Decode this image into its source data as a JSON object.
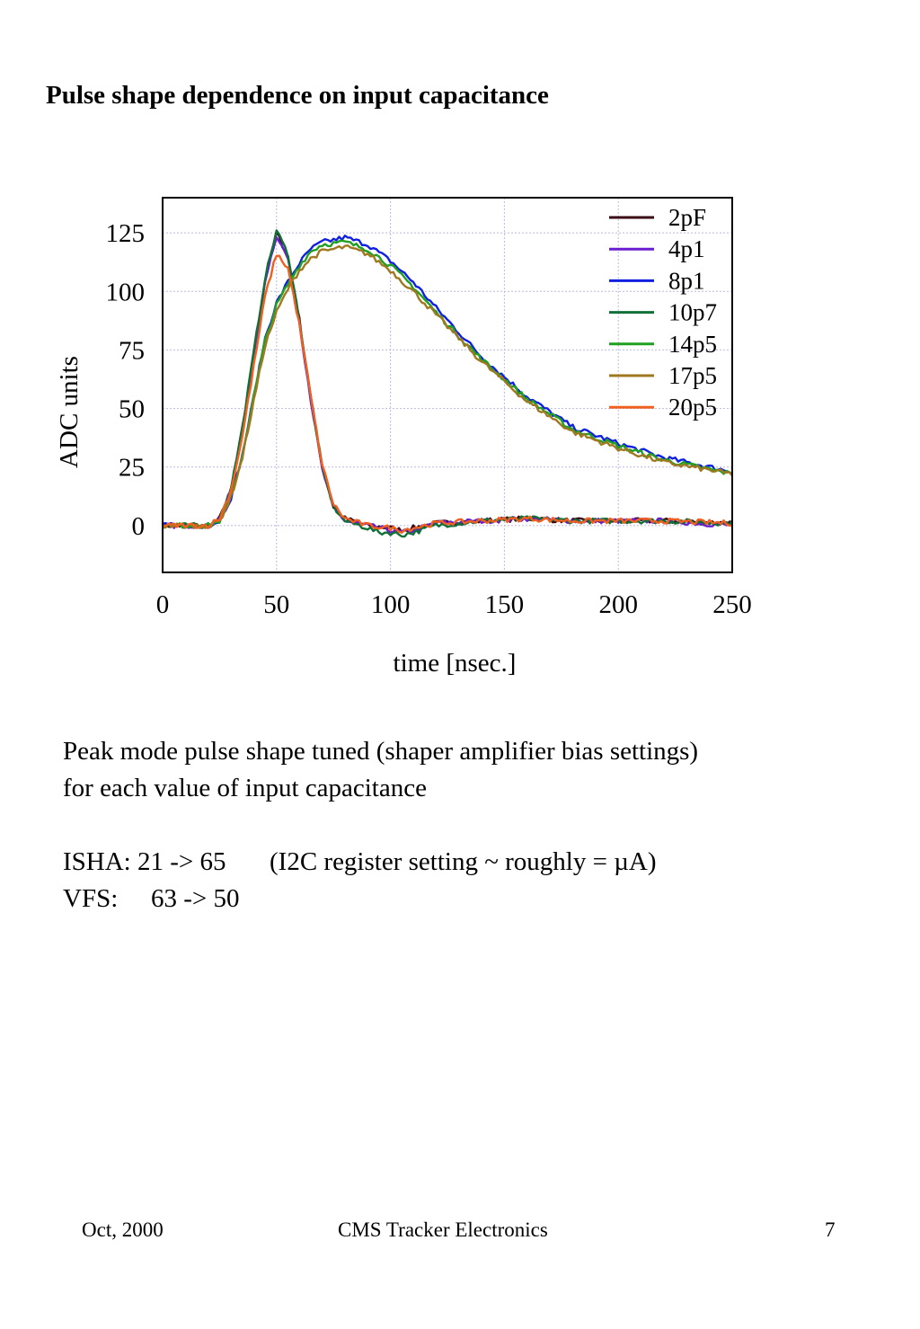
{
  "page": {
    "title": "Pulse shape dependence on input capacitance",
    "description": {
      "line1": "Peak mode pulse shape tuned (shaper amplifier bias settings)",
      "line2": "for each value of input capacitance",
      "isha_label": "ISHA: 21 -> 65",
      "isha_note": "(I2C register setting ~ roughly = µA)",
      "vfs_label": "VFS:",
      "vfs_value": "63 -> 50"
    },
    "footer": {
      "date": "Oct, 2000",
      "center": "CMS Tracker Electronics",
      "page_number": "7"
    }
  },
  "chart_data": {
    "type": "line",
    "title": "",
    "xlabel": "time [nsec.]",
    "ylabel": "ADC units",
    "xlim": [
      0,
      250
    ],
    "ylim": [
      -20,
      140
    ],
    "xticks": [
      0,
      50,
      100,
      150,
      200,
      250
    ],
    "yticks": [
      0,
      25,
      50,
      75,
      100,
      125
    ],
    "grid": true,
    "legend_position": "top-right",
    "series": [
      {
        "name": "2pF",
        "color": "#3a0a14",
        "x": [
          0,
          20,
          25,
          30,
          35,
          40,
          45,
          50,
          55,
          60,
          65,
          70,
          75,
          80,
          90,
          100,
          105,
          110,
          120,
          140,
          160,
          180,
          200,
          220,
          250
        ],
        "y": [
          0,
          0,
          3,
          15,
          40,
          72,
          105,
          125,
          115,
          88,
          55,
          25,
          8,
          3,
          0,
          -1,
          -2,
          -1,
          1,
          2,
          3,
          2,
          2,
          2,
          1
        ]
      },
      {
        "name": "4p1",
        "color": "#6a1ed0",
        "x": [
          0,
          20,
          25,
          30,
          35,
          40,
          45,
          50,
          55,
          60,
          65,
          70,
          75,
          80,
          90,
          100,
          105,
          110,
          120,
          140,
          160,
          180,
          200,
          220,
          250
        ],
        "y": [
          0,
          0,
          3,
          15,
          40,
          72,
          105,
          124,
          114,
          87,
          54,
          24,
          8,
          2,
          0,
          -2,
          -3,
          -2,
          1,
          2,
          3,
          2,
          2,
          2,
          0
        ]
      },
      {
        "name": "8p1",
        "color": "#1020e0",
        "x": [
          0,
          20,
          25,
          30,
          35,
          40,
          45,
          50,
          55,
          60,
          65,
          70,
          80,
          90,
          100,
          110,
          120,
          140,
          160,
          180,
          200,
          220,
          250
        ],
        "y": [
          0,
          0,
          2,
          12,
          30,
          55,
          80,
          95,
          104,
          112,
          118,
          121,
          123,
          120,
          113,
          104,
          93,
          72,
          55,
          42,
          35,
          29,
          23
        ]
      },
      {
        "name": "10p7",
        "color": "#107038",
        "x": [
          0,
          20,
          25,
          30,
          35,
          40,
          45,
          50,
          55,
          60,
          65,
          70,
          75,
          80,
          90,
          95,
          100,
          105,
          110,
          120,
          140,
          160,
          180,
          200,
          220,
          250
        ],
        "y": [
          0,
          0,
          3,
          16,
          42,
          74,
          106,
          126,
          116,
          88,
          55,
          25,
          8,
          2,
          -1,
          -3,
          -3,
          -4,
          -3,
          0,
          2,
          3,
          2,
          2,
          2,
          1
        ]
      },
      {
        "name": "14p5",
        "color": "#20a020",
        "x": [
          0,
          20,
          25,
          30,
          35,
          40,
          45,
          50,
          55,
          60,
          65,
          70,
          80,
          90,
          100,
          110,
          120,
          140,
          160,
          180,
          200,
          220,
          250
        ],
        "y": [
          0,
          0,
          2,
          12,
          30,
          55,
          79,
          94,
          103,
          111,
          117,
          120,
          121,
          118,
          111,
          102,
          91,
          71,
          54,
          41,
          34,
          28,
          22
        ]
      },
      {
        "name": "17p5",
        "color": "#a07820",
        "x": [
          0,
          20,
          25,
          30,
          35,
          40,
          45,
          50,
          55,
          60,
          65,
          70,
          80,
          90,
          100,
          110,
          120,
          140,
          160,
          180,
          200,
          220,
          250
        ],
        "y": [
          0,
          0,
          2,
          12,
          29,
          53,
          77,
          91,
          101,
          109,
          114,
          117,
          119,
          116,
          109,
          100,
          90,
          70,
          53,
          40,
          33,
          27,
          22
        ]
      },
      {
        "name": "20p5",
        "color": "#f06020",
        "x": [
          0,
          20,
          25,
          30,
          35,
          40,
          45,
          50,
          55,
          60,
          65,
          70,
          75,
          80,
          90,
          100,
          105,
          110,
          120,
          140,
          160,
          180,
          200,
          220,
          250
        ],
        "y": [
          0,
          0,
          3,
          15,
          38,
          68,
          98,
          116,
          110,
          86,
          55,
          26,
          9,
          3,
          0,
          -1,
          -2,
          -1,
          1,
          2,
          3,
          2,
          2,
          2,
          1
        ]
      }
    ]
  }
}
